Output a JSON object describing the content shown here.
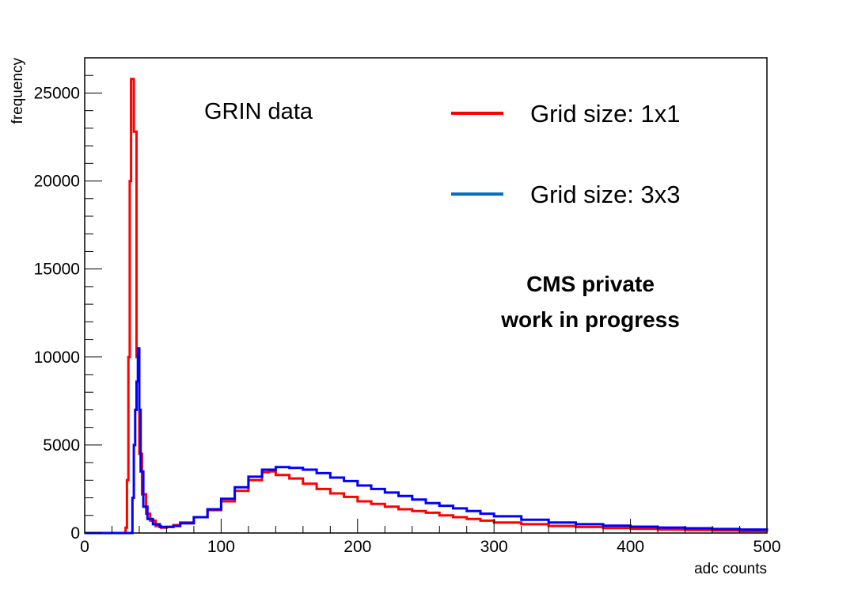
{
  "chart_data": {
    "type": "line",
    "title": "",
    "xlabel": "adc counts",
    "ylabel": "frequency",
    "xlim": [
      0,
      500
    ],
    "ylim": [
      0,
      27000
    ],
    "x_ticks": [
      0,
      100,
      200,
      300,
      400,
      500
    ],
    "y_ticks": [
      0,
      5000,
      10000,
      15000,
      20000,
      25000
    ],
    "x_tick_labels": [
      "0",
      "100",
      "200",
      "300",
      "400",
      "500"
    ],
    "y_tick_labels": [
      "0",
      "5000",
      "10000",
      "15000",
      "20000",
      "25000"
    ],
    "grid": false,
    "legend_position": "top-right",
    "annotation": "GRIN data",
    "watermark_lines": [
      "CMS private",
      "work in progress"
    ],
    "series": [
      {
        "name": "Grid size: 1x1",
        "color": "#ff0000",
        "legend_color": "#ff0000",
        "points": [
          [
            0,
            0
          ],
          [
            28,
            0
          ],
          [
            30,
            300
          ],
          [
            31,
            3000
          ],
          [
            32,
            10000
          ],
          [
            33,
            20000
          ],
          [
            34,
            25800
          ],
          [
            35,
            25800
          ],
          [
            36,
            22800
          ],
          [
            37,
            22800
          ],
          [
            38,
            10000
          ],
          [
            40,
            4500
          ],
          [
            42,
            2200
          ],
          [
            45,
            1100
          ],
          [
            48,
            700
          ],
          [
            52,
            400
          ],
          [
            56,
            300
          ],
          [
            60,
            350
          ],
          [
            65,
            450
          ],
          [
            70,
            600
          ],
          [
            80,
            900
          ],
          [
            90,
            1300
          ],
          [
            100,
            1800
          ],
          [
            110,
            2400
          ],
          [
            120,
            3000
          ],
          [
            130,
            3450
          ],
          [
            135,
            3500
          ],
          [
            140,
            3300
          ],
          [
            150,
            3100
          ],
          [
            160,
            2800
          ],
          [
            170,
            2500
          ],
          [
            180,
            2250
          ],
          [
            190,
            2050
          ],
          [
            200,
            1800
          ],
          [
            210,
            1650
          ],
          [
            220,
            1500
          ],
          [
            230,
            1350
          ],
          [
            240,
            1250
          ],
          [
            250,
            1150
          ],
          [
            260,
            1000
          ],
          [
            270,
            900
          ],
          [
            280,
            800
          ],
          [
            290,
            700
          ],
          [
            300,
            600
          ],
          [
            320,
            500
          ],
          [
            340,
            400
          ],
          [
            360,
            340
          ],
          [
            380,
            280
          ],
          [
            400,
            240
          ],
          [
            420,
            200
          ],
          [
            440,
            170
          ],
          [
            460,
            140
          ],
          [
            480,
            110
          ],
          [
            500,
            80
          ]
        ]
      },
      {
        "name": "Grid size: 3x3",
        "color": "#0000ff",
        "legend_color": "#0070c0",
        "points": [
          [
            0,
            0
          ],
          [
            33,
            0
          ],
          [
            35,
            2000
          ],
          [
            36,
            5000
          ],
          [
            37,
            7000
          ],
          [
            38,
            8600
          ],
          [
            39,
            10500
          ],
          [
            40,
            7000
          ],
          [
            41,
            3500
          ],
          [
            43,
            1500
          ],
          [
            46,
            800
          ],
          [
            50,
            500
          ],
          [
            55,
            350
          ],
          [
            60,
            350
          ],
          [
            65,
            400
          ],
          [
            70,
            550
          ],
          [
            80,
            900
          ],
          [
            90,
            1350
          ],
          [
            100,
            1950
          ],
          [
            110,
            2600
          ],
          [
            120,
            3200
          ],
          [
            130,
            3600
          ],
          [
            140,
            3750
          ],
          [
            150,
            3700
          ],
          [
            160,
            3600
          ],
          [
            170,
            3400
          ],
          [
            180,
            3150
          ],
          [
            190,
            2950
          ],
          [
            200,
            2700
          ],
          [
            210,
            2500
          ],
          [
            220,
            2300
          ],
          [
            230,
            2100
          ],
          [
            240,
            1900
          ],
          [
            250,
            1700
          ],
          [
            260,
            1550
          ],
          [
            270,
            1400
          ],
          [
            280,
            1250
          ],
          [
            290,
            1100
          ],
          [
            300,
            950
          ],
          [
            320,
            750
          ],
          [
            340,
            600
          ],
          [
            360,
            500
          ],
          [
            380,
            420
          ],
          [
            400,
            360
          ],
          [
            420,
            310
          ],
          [
            440,
            270
          ],
          [
            460,
            230
          ],
          [
            480,
            200
          ],
          [
            500,
            170
          ]
        ]
      }
    ]
  }
}
